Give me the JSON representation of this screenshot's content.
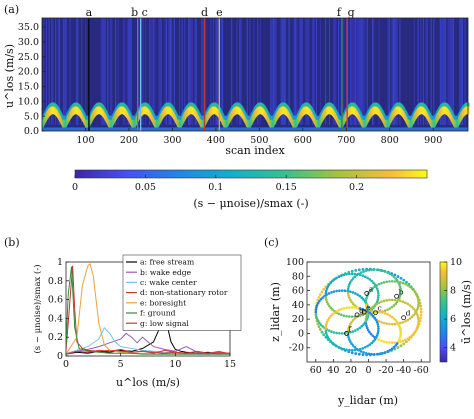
{
  "panels": {
    "a": "(a)",
    "b": "(b)",
    "c": "(c)"
  },
  "chart_data": [
    {
      "type": "heatmap",
      "panel": "(a)",
      "xlabel": "scan index",
      "ylabel": "u^los (m/s)",
      "xlim": [
        0,
        980
      ],
      "ylim": [
        0,
        38
      ],
      "xticks": [
        100,
        200,
        300,
        400,
        500,
        600,
        700,
        800,
        900
      ],
      "yticks": [
        0,
        5,
        10,
        15,
        20,
        25,
        30,
        35
      ],
      "background_level": 0.04,
      "ridge": {
        "description": "periodic bright band near u^los = 2-7 m/s repeating every ~53 scans",
        "period_scans": 53,
        "min_ms": 2.5,
        "max_ms": 7
      },
      "markers": [
        {
          "label": "a",
          "x": 108,
          "color": "#000000"
        },
        {
          "label": "b",
          "x": 220,
          "color": "#9b59b6"
        },
        {
          "label": "c",
          "x": 227,
          "color": "#6ec6e6"
        },
        {
          "label": "d",
          "x": 374,
          "color": "#c0392b"
        },
        {
          "label": "e",
          "x": 408,
          "color": "#e8a53a"
        },
        {
          "label": "f",
          "x": 690,
          "color": "#2e8b3d"
        },
        {
          "label": "g",
          "x": 702,
          "color": "#e0323a"
        }
      ],
      "colorbar": {
        "label": "(s − μnoise)/smax  (-)",
        "range": [
          0,
          0.25
        ],
        "ticks": [
          0,
          0.05,
          0.1,
          0.15,
          0.2
        ]
      }
    },
    {
      "type": "line",
      "panel": "(b)",
      "xlabel": "u^los (m/s)",
      "ylabel": "(s − μnoise)/smax  (-)",
      "xlim": [
        0,
        15
      ],
      "ylim": [
        0,
        1
      ],
      "xticks": [
        0,
        5,
        10,
        15
      ],
      "yticks": [
        0,
        0.2,
        0.4,
        0.6,
        0.8,
        1
      ],
      "series": [
        {
          "name": "a: free stream",
          "color": "#000000",
          "x": [
            0,
            1,
            2,
            3,
            4,
            5,
            6,
            7,
            8,
            8.5,
            9,
            9.3,
            9.6,
            10,
            10.5,
            11,
            12,
            13,
            14,
            15
          ],
          "y": [
            0.02,
            0.04,
            0.03,
            0.05,
            0.04,
            0.06,
            0.05,
            0.08,
            0.15,
            0.28,
            0.36,
            0.3,
            0.15,
            0.07,
            0.05,
            0.04,
            0.03,
            0.04,
            0.02,
            0.03
          ]
        },
        {
          "name": "b: wake edge",
          "color": "#9b59b6",
          "x": [
            0,
            1,
            2,
            3,
            4,
            5,
            5.5,
            6,
            6.5,
            7,
            7.5,
            8,
            9,
            10,
            11,
            12,
            13,
            14,
            15
          ],
          "y": [
            0.02,
            0.05,
            0.07,
            0.1,
            0.14,
            0.18,
            0.24,
            0.2,
            0.14,
            0.2,
            0.15,
            0.1,
            0.07,
            0.05,
            0.1,
            0.04,
            0.03,
            0.05,
            0.02
          ]
        },
        {
          "name": "c: wake center",
          "color": "#6ec6e6",
          "x": [
            0,
            1,
            2,
            3,
            3.5,
            4,
            4.5,
            5,
            6,
            7,
            8,
            9,
            10,
            11,
            12,
            13,
            14,
            15
          ],
          "y": [
            0.03,
            0.06,
            0.1,
            0.18,
            0.3,
            0.24,
            0.15,
            0.1,
            0.08,
            0.06,
            0.05,
            0.04,
            0.03,
            0.03,
            0.02,
            0.02,
            0.02,
            0.02
          ]
        },
        {
          "name": "d: non-stationary rotor",
          "color": "#c0392b",
          "x": [
            0,
            0.3,
            0.6,
            0.8,
            1,
            1.5,
            2,
            3,
            4,
            5,
            6,
            7,
            8,
            9,
            10,
            11,
            12,
            13,
            14,
            15
          ],
          "y": [
            0.05,
            0.5,
            0.96,
            0.5,
            0.15,
            0.08,
            0.06,
            0.05,
            0.06,
            0.05,
            0.04,
            0.05,
            0.04,
            0.03,
            0.04,
            0.03,
            0.03,
            0.02,
            0.03,
            0.02
          ]
        },
        {
          "name": "e: boresight",
          "color": "#e8a53a",
          "x": [
            0,
            1,
            1.5,
            2,
            2.2,
            2.5,
            3,
            3.5,
            4,
            5,
            6,
            7,
            8,
            9,
            10,
            11,
            12,
            13,
            14,
            15
          ],
          "y": [
            0.02,
            0.2,
            0.75,
            0.96,
            0.98,
            0.85,
            0.35,
            0.12,
            0.06,
            0.04,
            0.03,
            0.03,
            0.02,
            0.02,
            0.02,
            0.02,
            0.02,
            0.02,
            0.02,
            0.02
          ]
        },
        {
          "name": "f: ground",
          "color": "#2e8b3d",
          "x": [
            0,
            0.2,
            0.5,
            0.8,
            1.2,
            2,
            3,
            4,
            5,
            6,
            7,
            8,
            9,
            10,
            11,
            12,
            13,
            14,
            15
          ],
          "y": [
            0.1,
            0.65,
            0.95,
            0.3,
            0.08,
            0.05,
            0.04,
            0.03,
            0.03,
            0.03,
            0.02,
            0.02,
            0.02,
            0.02,
            0.02,
            0.02,
            0.02,
            0.02,
            0.02
          ]
        },
        {
          "name": "g: low signal",
          "color": "#e0323a",
          "x": [
            0,
            1,
            2,
            3,
            4,
            5,
            6,
            7,
            8,
            9,
            10,
            11,
            12,
            13,
            14,
            15
          ],
          "y": [
            0.02,
            0.05,
            0.04,
            0.06,
            0.05,
            0.07,
            0.04,
            0.05,
            0.03,
            0.06,
            0.04,
            0.03,
            0.05,
            0.03,
            0.04,
            0.03
          ]
        }
      ]
    },
    {
      "type": "scatter",
      "panel": "(c)",
      "xlabel": "y_lidar (m)",
      "ylabel": "z_lidar (m)",
      "xlim": [
        70,
        -70
      ],
      "ylim": [
        -40,
        100
      ],
      "xticks": [
        60,
        40,
        20,
        0,
        -20,
        -40,
        -60
      ],
      "yticks": [
        -20,
        0,
        20,
        40,
        60,
        80,
        100
      ],
      "pattern": {
        "center": [
          0,
          30
        ],
        "radius_outer": 60,
        "petals": 7,
        "petal_radius": 30
      },
      "markers": [
        {
          "label": "a",
          "y": 2,
          "z": 56
        },
        {
          "label": "b",
          "y": -32,
          "z": 52
        },
        {
          "label": "c",
          "y": -8,
          "z": 29
        },
        {
          "label": "d",
          "y": -40,
          "z": 22
        },
        {
          "label": "e",
          "y": 5,
          "z": 30
        },
        {
          "label": "f",
          "y": 25,
          "z": 0
        },
        {
          "label": "g",
          "y": 13,
          "z": 26
        }
      ],
      "colorbar": {
        "label": "ū^los (m/s)",
        "range": [
          3,
          10
        ],
        "ticks": [
          4,
          6,
          8,
          10
        ]
      }
    }
  ]
}
